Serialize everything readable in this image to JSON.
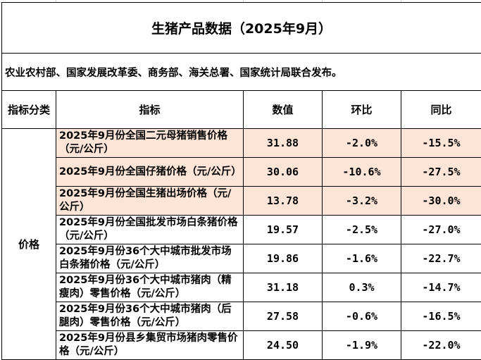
{
  "title": "生猪产品数据（2025年9月）",
  "source": "农业农村部、国家发展改革委、商务部、海关总署、国家统计局联合发布。",
  "headers": {
    "category": "指标分类",
    "indicator": "指标",
    "value": "数值",
    "mom": "环比",
    "yoy": "同比"
  },
  "category": "价格",
  "highlight_color": "#fce4d6",
  "rows": [
    {
      "indicator": "2025年9月份全国二元母猪销售价格（元/公斤）",
      "value": "31.88",
      "mom": "-2.0%",
      "yoy": "-15.5%",
      "highlight": true
    },
    {
      "indicator": "2025年9月份全国仔猪价格（元/公斤）",
      "value": "30.06",
      "mom": "-10.6%",
      "yoy": "-27.5%",
      "highlight": true
    },
    {
      "indicator": "2025年9月份全国生猪出场价格（元/公斤）",
      "value": "13.78",
      "mom": "-3.2%",
      "yoy": "-30.0%",
      "highlight": true
    },
    {
      "indicator": "2025年9月份全国批发市场白条猪价格（元/公斤）",
      "value": "19.57",
      "mom": "-2.5%",
      "yoy": "-27.0%",
      "highlight": false
    },
    {
      "indicator": "2025年9月份36个大中城市批发市场白条猪价格（元/公斤）",
      "value": "19.86",
      "mom": "-1.6%",
      "yoy": "-22.7%",
      "highlight": false
    },
    {
      "indicator": "2025年9月份36个大中城市猪肉（精瘦肉）零售价格（元/公斤）",
      "value": "31.18",
      "mom": "0.3%",
      "yoy": "-14.7%",
      "highlight": false
    },
    {
      "indicator": "2025年9月份36个大中城市猪肉（后腿肉）零售价格（元/公斤）",
      "value": "27.58",
      "mom": "-0.6%",
      "yoy": "-16.5%",
      "highlight": false
    },
    {
      "indicator": "2025年9月份县乡集贸市场猪肉零售价格（元/公斤）",
      "value": "24.50",
      "mom": "-1.9%",
      "yoy": "-22.0%",
      "highlight": false
    }
  ]
}
